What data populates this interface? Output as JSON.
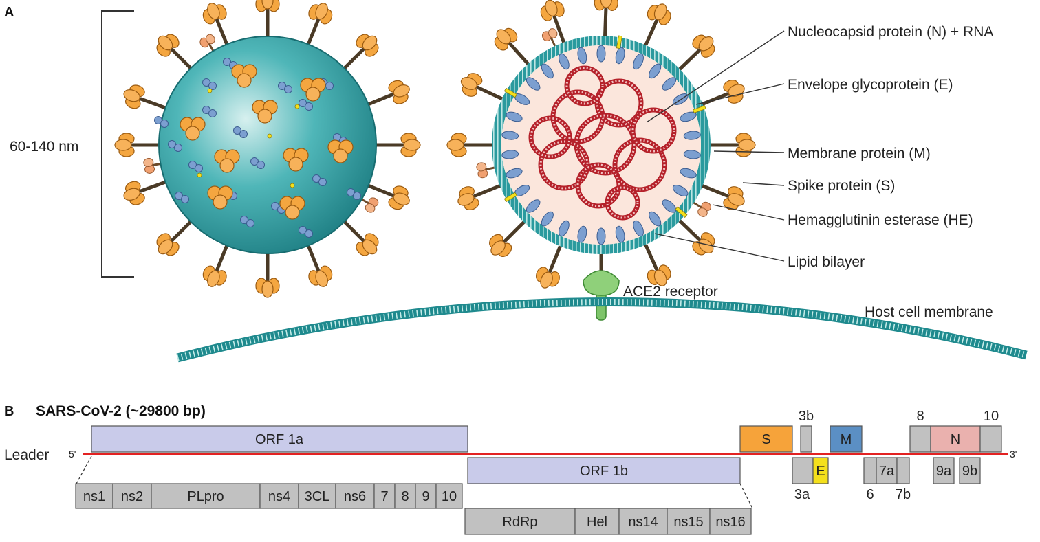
{
  "panels": {
    "a": "A",
    "b": "B"
  },
  "virion": {
    "size_label": "60-140 nm",
    "labels": [
      "Nucleocapsid protein (N) + RNA",
      "Envelope glycoprotein (E)",
      "Membrane protein (M)",
      "Spike protein (S)",
      "Hemagglutinin esterase (HE)",
      "Lipid bilayer"
    ],
    "receptor_label": "ACE2 receptor",
    "membrane_label": "Host cell membrane"
  },
  "genome": {
    "title": "SARS-CoV-2 (~29800 bp)",
    "leader_label": "Leader",
    "five_prime": "5'",
    "three_prime": "3'",
    "orf1a": "ORF 1a",
    "orf1b": "ORF 1b",
    "nsp_1a": [
      "ns1",
      "ns2",
      "PLpro",
      "ns4",
      "3CL",
      "ns6",
      "7",
      "8",
      "9",
      "10"
    ],
    "nsp_1b": [
      "RdRp",
      "Hel",
      "ns14",
      "ns15",
      "ns16"
    ],
    "genes": {
      "S": "S",
      "E": "E",
      "M": "M",
      "N": "N",
      "3a": "3a",
      "3b": "3b",
      "6": "6",
      "7a": "7a",
      "7b": "7b",
      "8": "8",
      "9a": "9a",
      "9b": "9b",
      "10": "10"
    },
    "colors": {
      "orf": "#c9cbea",
      "gray": "#c1c1c1",
      "S": "#f6a33a",
      "E": "#f4e01c",
      "M": "#5b8fc4",
      "N": "#eab1ae",
      "line": "#e32222"
    }
  },
  "colors": {
    "teal": "#2a9a9e",
    "spike": "#f4a640",
    "stalk": "#4a3a26",
    "rna": "#b5212a"
  }
}
